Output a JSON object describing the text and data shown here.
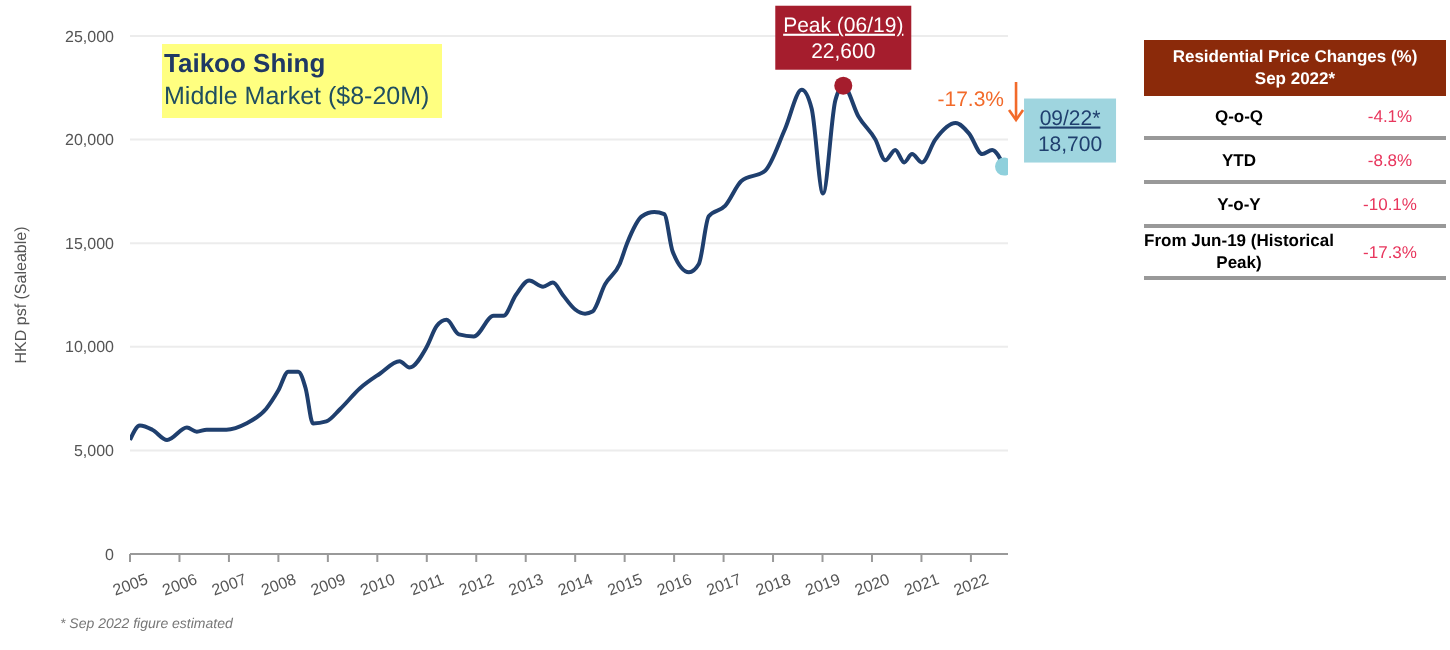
{
  "chart_data": [
    {
      "type": "line",
      "title": "Taikoo Shing",
      "subtitle": "Middle Market ($8-20M)",
      "ylabel": "HKD psf (Saleable)",
      "xlim": [
        2005,
        2022.75
      ],
      "xticks": [
        2005,
        2006,
        2007,
        2008,
        2009,
        2010,
        2011,
        2012,
        2013,
        2014,
        2015,
        2016,
        2017,
        2018,
        2019,
        2020,
        2021,
        2022
      ],
      "ylim": [
        0,
        25000
      ],
      "yticks": [
        0,
        {
          "value": 5000,
          "label": "5,000"
        },
        {
          "value": 10000,
          "label": "10,000"
        },
        {
          "value": 15000,
          "label": "15,000"
        },
        {
          "value": 20000,
          "label": "20,000"
        },
        {
          "value": 25000,
          "label": "25,000"
        }
      ],
      "grid": "y",
      "line_style": "solid",
      "series": [
        {
          "type": "line",
          "color": "#1f3f6e",
          "marker": "none",
          "x": [
            2005.0,
            2005.2,
            2005.45,
            2005.75,
            2006.15,
            2006.35,
            2006.55,
            2006.95,
            2007.35,
            2007.75,
            2008.0,
            2008.2,
            2008.4,
            2008.55,
            2008.7,
            2008.97,
            2009.25,
            2009.65,
            2010.05,
            2010.45,
            2010.65,
            2011.0,
            2011.2,
            2011.4,
            2011.65,
            2011.95,
            2012.35,
            2012.55,
            2012.8,
            2013.07,
            2013.35,
            2013.55,
            2013.75,
            2014.0,
            2014.2,
            2014.35,
            2014.6,
            2014.9,
            2015.05,
            2015.35,
            2015.6,
            2015.8,
            2015.97,
            2016.3,
            2016.5,
            2016.7,
            2017.03,
            2017.36,
            2017.84,
            2018.24,
            2018.58,
            2018.78,
            2019.01,
            2019.26,
            2019.42,
            2019.73,
            2020.07,
            2020.27,
            2020.47,
            2020.65,
            2020.81,
            2021.01,
            2021.28,
            2021.69,
            2021.96,
            2022.23,
            2022.43,
            2022.67
          ],
          "values": [
            5500,
            6200,
            6000,
            5500,
            6100,
            5900,
            6000,
            6000,
            6300,
            7000,
            7900,
            8800,
            8800,
            8000,
            6300,
            6400,
            7000,
            8000,
            8700,
            9300,
            9000,
            10000,
            11000,
            11300,
            10600,
            10500,
            11500,
            11500,
            12500,
            13200,
            12900,
            13100,
            12500,
            11800,
            11600,
            11700,
            13000,
            14000,
            15000,
            16300,
            16500,
            16400,
            14600,
            13600,
            14000,
            16300,
            16800,
            18000,
            18500,
            20500,
            22400,
            21500,
            17400,
            21900,
            22600,
            21100,
            20000,
            19000,
            19500,
            18900,
            19300,
            18900,
            20000,
            20800,
            20300,
            19300,
            19500,
            18700
          ]
        },
        {
          "type": "scatter",
          "color": "#a51d2d",
          "marker": "circle",
          "x": [
            2019.42
          ],
          "values": [
            22600
          ]
        },
        {
          "type": "scatter",
          "color": "#8fd0dc",
          "marker": "circle",
          "x": [
            2022.67
          ],
          "values": [
            18700
          ]
        }
      ],
      "annotations": [
        {
          "text": "Peak (06/19)\n22,600",
          "x": 2019.42,
          "y": 22600
        },
        {
          "text": "09/22*\n18,700",
          "x": 2022.67,
          "y": 18700
        },
        "-17.3%",
        "* Sep 2022 figure estimated"
      ]
    },
    {
      "type": "other",
      "title": "Residential Price Changes (%)",
      "subtitle": "Sep 2022*",
      "categories": [
        "Q-o-Q",
        "YTD",
        "Y-o-Y",
        "From Jun-19 (Historical Peak)"
      ],
      "value_labels": [
        "-4.1%",
        "-8.8%",
        "-10.1%",
        "-17.3%"
      ]
    }
  ]
}
